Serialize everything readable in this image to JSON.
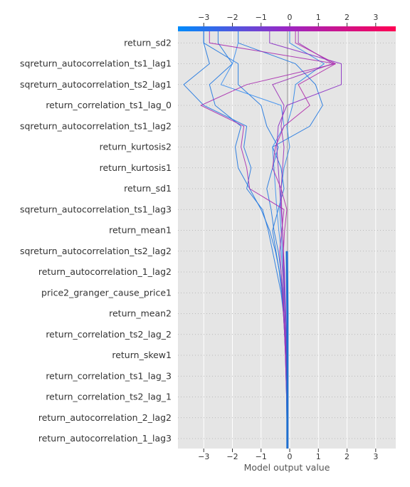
{
  "chart_data": {
    "type": "line",
    "subtype": "shap-decision-plot",
    "title": "",
    "xlabel": "Model output value",
    "ylabel": "",
    "xlim": [
      -3.9,
      3.7
    ],
    "xticks": [
      -3,
      -2,
      -1,
      0,
      1,
      2,
      3
    ],
    "xtick_labels": [
      "−3",
      "−2",
      "−1",
      "0",
      "1",
      "2",
      "3"
    ],
    "base_value": -0.08,
    "grid": true,
    "colorbar": {
      "position": "top",
      "low_color": "#008bfb",
      "high_color": "#ff0052",
      "range": [
        -3.9,
        3.7
      ]
    },
    "features": [
      "return_autocorrelation_1_lag3",
      "return_autocorrelation_2_lag2",
      "return_correlation_ts2_lag_1",
      "return_correlation_ts1_lag_3",
      "return_skew1",
      "return_correlation_ts2_lag_2",
      "return_mean2",
      "price2_granger_cause_price1",
      "return_autocorrelation_1_lag2",
      "sqreturn_autocorrelation_ts2_lag2",
      "return_mean1",
      "sqreturn_autocorrelation_ts1_lag3",
      "return_sd1",
      "return_kurtosis1",
      "return_kurtosis2",
      "sqreturn_autocorrelation_ts1_lag2",
      "return_correlation_ts1_lag_0",
      "sqreturn_autocorrelation_ts2_lag1",
      "sqreturn_autocorrelation_ts1_lag1",
      "return_sd2"
    ],
    "feature_order_note": "bottom-to-top",
    "series": [
      {
        "color": "#1f77e0",
        "x": [
          -0.08,
          -0.09,
          -0.09,
          -0.1,
          -0.12,
          -0.14,
          -0.18,
          -0.22,
          -0.3,
          -0.45,
          -0.6,
          -0.75,
          -0.95,
          -1.5,
          -1.35,
          -1.6,
          -1.5,
          -3.0,
          -3.7,
          -2.8,
          -3.0
        ]
      },
      {
        "color": "#1f77e0",
        "x": [
          -0.08,
          -0.09,
          -0.1,
          -0.11,
          -0.13,
          -0.15,
          -0.18,
          -0.2,
          -0.25,
          -0.35,
          -0.5,
          -0.7,
          -1.0,
          -1.4,
          -1.8,
          -1.9,
          -1.7,
          -2.6,
          -2.8,
          -2.0,
          -2.5
        ]
      },
      {
        "color": "#1f77e0",
        "x": [
          -0.08,
          -0.09,
          -0.09,
          -0.1,
          -0.12,
          -0.14,
          -0.17,
          -0.2,
          -0.24,
          -0.3,
          -0.4,
          -0.55,
          -0.65,
          -0.8,
          -0.6,
          -0.4,
          -0.8,
          -1.0,
          -1.8,
          -1.8,
          -3.0
        ]
      },
      {
        "color": "#1f77e0",
        "x": [
          -0.08,
          -0.09,
          -0.1,
          -0.11,
          -0.13,
          -0.15,
          -0.18,
          -0.22,
          -0.28,
          -0.36,
          -0.48,
          -0.6,
          -0.4,
          -0.2,
          -0.3,
          -0.6,
          0.7,
          1.15,
          0.9,
          0.2,
          -1.8
        ]
      },
      {
        "color": "#2f86e8",
        "x": [
          -0.08,
          -0.09,
          -0.09,
          -0.1,
          -0.11,
          -0.12,
          -0.14,
          -0.16,
          -0.18,
          -0.22,
          -0.26,
          -0.3,
          -0.35,
          -0.3,
          -0.2,
          0.0,
          -0.1,
          0.1,
          0.2,
          1.2,
          0.0
        ]
      },
      {
        "color": "#3b8ef0",
        "x": [
          -0.08,
          -0.09,
          -0.09,
          -0.1,
          -0.11,
          -0.12,
          -0.14,
          -0.17,
          -0.2,
          -0.25,
          -0.3,
          -0.38,
          -0.45,
          -0.5,
          -0.55,
          -0.6,
          -0.2,
          -0.3,
          -2.4,
          -2.0,
          -1.8
        ]
      },
      {
        "color": "#8a2fc4",
        "x": [
          -0.08,
          -0.08,
          -0.09,
          -0.09,
          -0.1,
          -0.11,
          -0.12,
          -0.14,
          -0.16,
          -0.18,
          -0.22,
          -0.25,
          -0.3,
          -0.35,
          -0.4,
          -0.45,
          -0.4,
          -0.1,
          1.8,
          1.8,
          -0.7
        ]
      },
      {
        "color": "#9a30b8",
        "x": [
          -0.08,
          -0.08,
          -0.09,
          -0.1,
          -0.11,
          -0.12,
          -0.14,
          -0.16,
          -0.18,
          -0.2,
          -0.22,
          -0.25,
          -0.28,
          -0.3,
          -0.25,
          -0.2,
          -0.3,
          -0.2,
          -0.6,
          1.5,
          0.3
        ]
      },
      {
        "color": "#b02aa8",
        "x": [
          -0.08,
          -0.08,
          -0.09,
          -0.1,
          -0.12,
          -0.14,
          -0.17,
          -0.2,
          -0.22,
          -0.24,
          -0.22,
          -0.18,
          -0.1,
          -0.3,
          -0.6,
          -0.5,
          -0.2,
          0.7,
          0.3,
          1.6,
          0.2
        ]
      },
      {
        "color": "#a92aae",
        "x": [
          -0.08,
          -0.09,
          -0.1,
          -0.11,
          -0.13,
          -0.15,
          -0.18,
          -0.22,
          -0.26,
          -0.3,
          -0.35,
          -0.28,
          -0.2,
          -1.4,
          -1.5,
          -1.7,
          -1.6,
          -3.1,
          -1.5,
          1.6,
          -2.8
        ]
      }
    ]
  }
}
